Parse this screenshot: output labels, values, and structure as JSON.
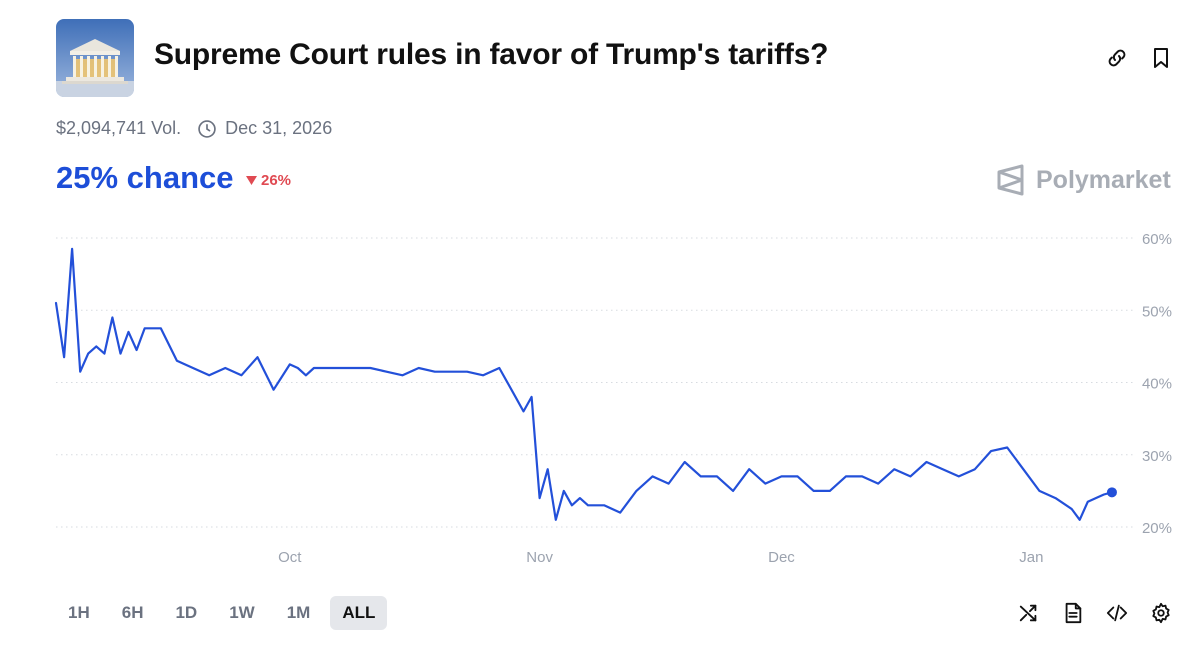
{
  "header": {
    "title": "Supreme Court rules in favor of Trump's tariffs?",
    "thumbnail_icon": "supreme-court-building-icon",
    "actions": [
      {
        "name": "link-icon"
      },
      {
        "name": "bookmark-icon"
      }
    ]
  },
  "meta": {
    "volume": "$2,094,741 Vol.",
    "end_date": "Dec 31, 2026",
    "clock_icon": "clock-icon"
  },
  "summary": {
    "chance": "25% chance",
    "change": "26%",
    "change_direction": "down",
    "change_color": "#e04a52",
    "accent_color": "#1d4ed8"
  },
  "brand": {
    "name": "Polymarket",
    "icon": "polymarket-logo-icon"
  },
  "chart_data": {
    "type": "line",
    "title": "",
    "xlabel": "",
    "ylabel": "",
    "x_ticks": [
      "Oct",
      "Nov",
      "Dec",
      "Jan"
    ],
    "y_ticks": [
      "60%",
      "50%",
      "40%",
      "30%",
      "20%"
    ],
    "ylim": [
      20,
      60
    ],
    "xlim": [
      "2025-09-02",
      "2026-01-12"
    ],
    "grid": "horizontal dotted",
    "line_color": "#2350d9",
    "series": [
      {
        "x": [
          "2025-09-02",
          "2025-09-03",
          "2025-09-04",
          "2025-09-05",
          "2025-09-06",
          "2025-09-07",
          "2025-09-08",
          "2025-09-09",
          "2025-09-10",
          "2025-09-11",
          "2025-09-12",
          "2025-09-13",
          "2025-09-14",
          "2025-09-15",
          "2025-09-17",
          "2025-09-19",
          "2025-09-21",
          "2025-09-23",
          "2025-09-25",
          "2025-09-27",
          "2025-09-29",
          "2025-10-01",
          "2025-10-02",
          "2025-10-03",
          "2025-10-04",
          "2025-10-05",
          "2025-10-07",
          "2025-10-09",
          "2025-10-11",
          "2025-10-13",
          "2025-10-15",
          "2025-10-17",
          "2025-10-19",
          "2025-10-21",
          "2025-10-23",
          "2025-10-25",
          "2025-10-27",
          "2025-10-29",
          "2025-10-30",
          "2025-10-31",
          "2025-11-01",
          "2025-11-02",
          "2025-11-03",
          "2025-11-04",
          "2025-11-05",
          "2025-11-06",
          "2025-11-07",
          "2025-11-09",
          "2025-11-11",
          "2025-11-13",
          "2025-11-15",
          "2025-11-17",
          "2025-11-19",
          "2025-11-21",
          "2025-11-23",
          "2025-11-25",
          "2025-11-27",
          "2025-11-29",
          "2025-12-01",
          "2025-12-03",
          "2025-12-05",
          "2025-12-07",
          "2025-12-09",
          "2025-12-11",
          "2025-12-13",
          "2025-12-15",
          "2025-12-17",
          "2025-12-19",
          "2025-12-21",
          "2025-12-23",
          "2025-12-25",
          "2025-12-27",
          "2025-12-29",
          "2025-12-31",
          "2026-01-02",
          "2026-01-04",
          "2026-01-06",
          "2026-01-07",
          "2026-01-08",
          "2026-01-09",
          "2026-01-10",
          "2026-01-11"
        ],
        "y": [
          51,
          43.5,
          58.5,
          41.5,
          44,
          45,
          44,
          49,
          44,
          47,
          44.5,
          47.5,
          47.5,
          47.5,
          43,
          42,
          41,
          42,
          41,
          43.5,
          39,
          42.5,
          42,
          41,
          42,
          42,
          42,
          42,
          42,
          41.5,
          41,
          42,
          41.5,
          41.5,
          41.5,
          41,
          42,
          38,
          36,
          38,
          24,
          28,
          21,
          25,
          23,
          24,
          23,
          23,
          22,
          25,
          27,
          26,
          29,
          27,
          27,
          25,
          28,
          26,
          27,
          27,
          25,
          25,
          27,
          27,
          26,
          28,
          27,
          29,
          28,
          27,
          28,
          30.5,
          31,
          28,
          25,
          24,
          22.5,
          21,
          23.5,
          24,
          24.5,
          24.8
        ]
      }
    ],
    "current_value": 25
  },
  "controls": {
    "ranges": [
      "1H",
      "6H",
      "1D",
      "1W",
      "1M",
      "ALL"
    ],
    "selected": "ALL",
    "tools": [
      "shuffle-icon",
      "document-icon",
      "code-icon",
      "settings-icon"
    ]
  }
}
